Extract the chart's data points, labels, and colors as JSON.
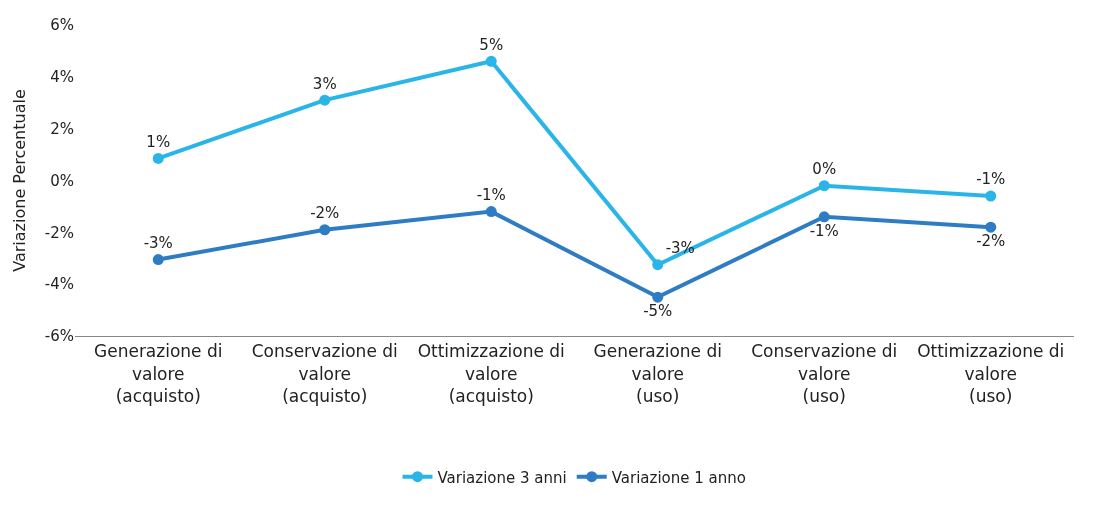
{
  "chart_data": {
    "type": "line",
    "ylabel": "Variazione Percentuale",
    "categories": [
      "Generazione di\nvalore\n(acquisto)",
      "Conservazione di\nvalore\n(acquisto)",
      "Ottimizzazione di\nvalore\n(acquisto)",
      "Generazione di\nvalore\n(uso)",
      "Conservazione di\nvalore\n(uso)",
      "Ottimizzazione di\nvalore\n(uso)"
    ],
    "series": [
      {
        "name": "Variazione 3 anni",
        "color": "#29b5e8",
        "values": [
          0.85,
          3.1,
          4.6,
          -3.25,
          -0.2,
          -0.6
        ],
        "value_labels": [
          "1%",
          "3%",
          "5%",
          "-3%",
          "0%",
          "-1%"
        ]
      },
      {
        "name": "Variazione 1 anno",
        "color": "#2e7dc4",
        "values": [
          -3.05,
          -1.9,
          -1.2,
          -4.5,
          -1.4,
          -1.8
        ],
        "value_labels": [
          "-3%",
          "-2%",
          "-1%",
          "-5%",
          "-1%",
          "-2%"
        ]
      }
    ],
    "ylim": [
      -6,
      6
    ],
    "yticks": [
      {
        "value": -6,
        "label": "-6%"
      },
      {
        "value": -4,
        "label": "-4%"
      },
      {
        "value": -2,
        "label": "-2%"
      },
      {
        "value": 0,
        "label": "0%"
      },
      {
        "value": 2,
        "label": "2%"
      },
      {
        "value": 4,
        "label": "4%"
      },
      {
        "value": 6,
        "label": "6%"
      }
    ],
    "legend": "bottom",
    "marker": "circle",
    "line_style": "solid"
  }
}
